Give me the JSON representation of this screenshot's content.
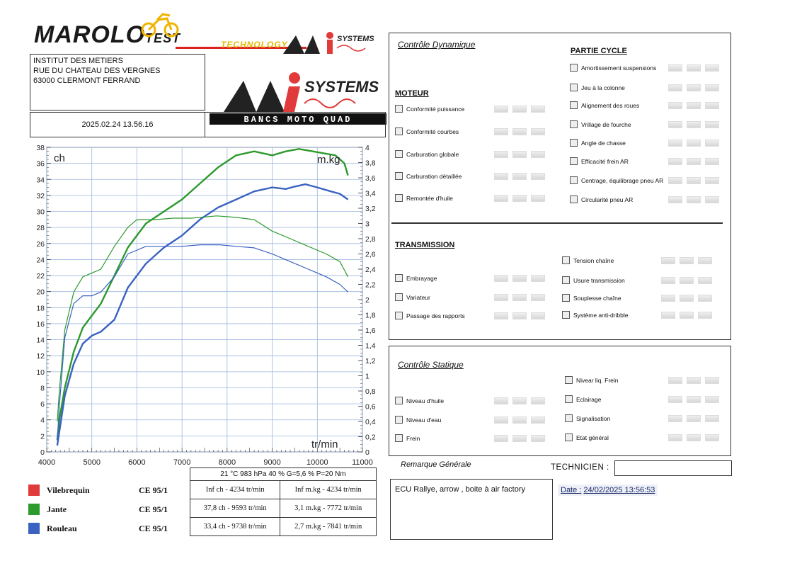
{
  "header": {
    "brand_main": "MAROLO",
    "brand_sub": "TEST",
    "brand_tech": "TECHNOLOGY",
    "brand_mi": "MI",
    "brand_systems": "SYSTEMS",
    "brand_tagline": "BANCS MOTO QUAD"
  },
  "address": {
    "line1": "INSTITUT DES METIERS",
    "line2": "RUE DU CHATEAU DES VERGNES",
    "line3": "63000 CLERMONT FERRAND"
  },
  "test_datetime": "2025.02.24 13.56.16",
  "chart_data": {
    "type": "line",
    "xlabel": "tr/min",
    "ylabel_left": "ch",
    "ylabel_right": "m.kg",
    "xlim": [
      4000,
      11000
    ],
    "ylim_left": [
      0,
      38
    ],
    "ylim_right": [
      0,
      4
    ],
    "x_ticks": [
      4000,
      5000,
      6000,
      7000,
      8000,
      9000,
      10000,
      11000
    ],
    "y_ticks_left": [
      0,
      2,
      4,
      6,
      8,
      10,
      12,
      14,
      16,
      18,
      20,
      22,
      24,
      26,
      28,
      30,
      32,
      34,
      36,
      38
    ],
    "y_ticks_right": [
      0,
      0.2,
      0.4,
      0.6,
      0.8,
      1,
      1.2,
      1.4,
      1.6,
      1.8,
      2,
      2.2,
      2.4,
      2.6,
      2.8,
      3,
      3.2,
      3.4,
      3.6,
      3.8,
      4
    ],
    "y_ticks_right_labels": [
      "0",
      "0,2",
      "0,4",
      "0,6",
      "0,8",
      "1",
      "1,2",
      "1,4",
      "1,6",
      "1,8",
      "2",
      "2,2",
      "2,4",
      "2,6",
      "2,8",
      "3",
      "3,2",
      "3,4",
      "3,6",
      "3,8",
      "4"
    ],
    "grid": true,
    "series": [
      {
        "name": "Jante",
        "quantity": "ch",
        "color": "#2d9a2d",
        "x": [
          4234,
          4280,
          4400,
          4600,
          4800,
          5000,
          5200,
          5500,
          5800,
          6200,
          6600,
          7000,
          7400,
          7800,
          8200,
          8600,
          9000,
          9300,
          9593,
          9900,
          10200,
          10400,
          10600,
          10680
        ],
        "y": [
          1.5,
          4,
          8,
          12.5,
          15.5,
          17,
          18.5,
          22,
          25.5,
          28.5,
          30,
          31.5,
          33.5,
          35.5,
          37,
          37.5,
          37,
          37.5,
          37.8,
          37.5,
          37.2,
          37,
          36,
          34.5
        ]
      },
      {
        "name": "Rouleau",
        "quantity": "ch",
        "color": "#3a62c0",
        "x": [
          4234,
          4280,
          4400,
          4600,
          4800,
          5000,
          5200,
          5500,
          5800,
          6200,
          6600,
          7000,
          7400,
          7800,
          8200,
          8600,
          9000,
          9300,
          9500,
          9738,
          10000,
          10300,
          10500,
          10680
        ],
        "y": [
          0.8,
          2.5,
          7,
          11,
          13.5,
          14.5,
          15,
          16.5,
          20.5,
          23.5,
          25.5,
          27,
          29,
          30.5,
          31.5,
          32.5,
          33,
          32.8,
          33.1,
          33.4,
          33,
          32.5,
          32.2,
          31.5
        ]
      },
      {
        "name": "Jante",
        "quantity": "m.kg",
        "color": "#2d9a2d",
        "x": [
          4234,
          4280,
          4400,
          4600,
          4800,
          5000,
          5200,
          5500,
          5800,
          6000,
          6400,
          6800,
          7200,
          7772,
          8200,
          8600,
          9000,
          9400,
          9800,
          10200,
          10500,
          10680
        ],
        "y": [
          0.4,
          0.8,
          1.6,
          2.1,
          2.3,
          2.35,
          2.4,
          2.7,
          2.95,
          3.05,
          3.05,
          3.07,
          3.07,
          3.1,
          3.08,
          3.05,
          2.9,
          2.8,
          2.7,
          2.6,
          2.5,
          2.3
        ]
      },
      {
        "name": "Rouleau",
        "quantity": "m.kg",
        "color": "#3a62c0",
        "x": [
          4234,
          4280,
          4400,
          4600,
          4800,
          5000,
          5200,
          5500,
          5800,
          6200,
          6600,
          7000,
          7400,
          7841,
          8200,
          8600,
          9000,
          9400,
          9800,
          10200,
          10500,
          10680
        ],
        "y": [
          0.15,
          0.6,
          1.5,
          1.95,
          2.05,
          2.05,
          2.1,
          2.3,
          2.6,
          2.7,
          2.7,
          2.7,
          2.72,
          2.72,
          2.7,
          2.68,
          2.6,
          2.5,
          2.4,
          2.3,
          2.2,
          2.1
        ]
      }
    ]
  },
  "conditions": "21 °C 983 hPa 40 % G=5,6 % P=20 Nm",
  "results_table": [
    {
      "power": "Inf ch - 4234 tr/min",
      "torque": "Inf m.kg - 4234 tr/min"
    },
    {
      "power": "37,8 ch - 9593 tr/min",
      "torque": "3,1 m.kg - 7772 tr/min"
    },
    {
      "power": "33,4 ch - 9738 tr/min",
      "torque": "2,7 m.kg - 7841 tr/min"
    }
  ],
  "legend": [
    {
      "label": "Vilebrequin",
      "standard": "CE 95/1",
      "color": "#e03a3a"
    },
    {
      "label": "Jante",
      "standard": "CE 95/1",
      "color": "#2d9a2d"
    },
    {
      "label": "Rouleau",
      "standard": "CE 95/1",
      "color": "#3a62c0"
    }
  ],
  "controle_dynamique": {
    "title": "Contrôle Dynamique",
    "moteur": {
      "title": "MOTEUR",
      "items": [
        "Conformité puissance",
        "Conformité courbes",
        "Carburation globale",
        "Carburation détaillée",
        "Remontée d'huile"
      ]
    },
    "partie_cycle": {
      "title": "PARTIE CYCLE",
      "items": [
        "Amortissement suspensions",
        "Jeu à la colonne",
        "Alignement des roues",
        "Vrillage de fourche",
        "Angle de chasse",
        "Efficacité frein AR",
        "Centrage, équilibrage pneu AR",
        "Circularité pneu AR"
      ]
    },
    "transmission": {
      "title": "TRANSMISSION",
      "left_items": [
        "Embrayage",
        "Variateur",
        "Passage des rapports"
      ],
      "right_items": [
        "Tension chaîne",
        "Usure transmission",
        "Souplesse chaîne",
        "Système anti-dribble"
      ]
    }
  },
  "controle_statique": {
    "title": "Contrôle Statique",
    "left_items": [
      "Niveau d'huile",
      "Niveau d'eau",
      "Frein"
    ],
    "right_items": [
      "Nivear liq. Frein",
      "Eclairage",
      "Signalisation",
      "Etat général"
    ]
  },
  "remarque": {
    "label": "Remarque Générale",
    "text": "ECU Rallye, arrow , boite à air factory"
  },
  "technicien": {
    "label": "TECHNICIEN :"
  },
  "date_sign": {
    "label": "Date :",
    "value": "24/02/2025 13:56:53"
  }
}
